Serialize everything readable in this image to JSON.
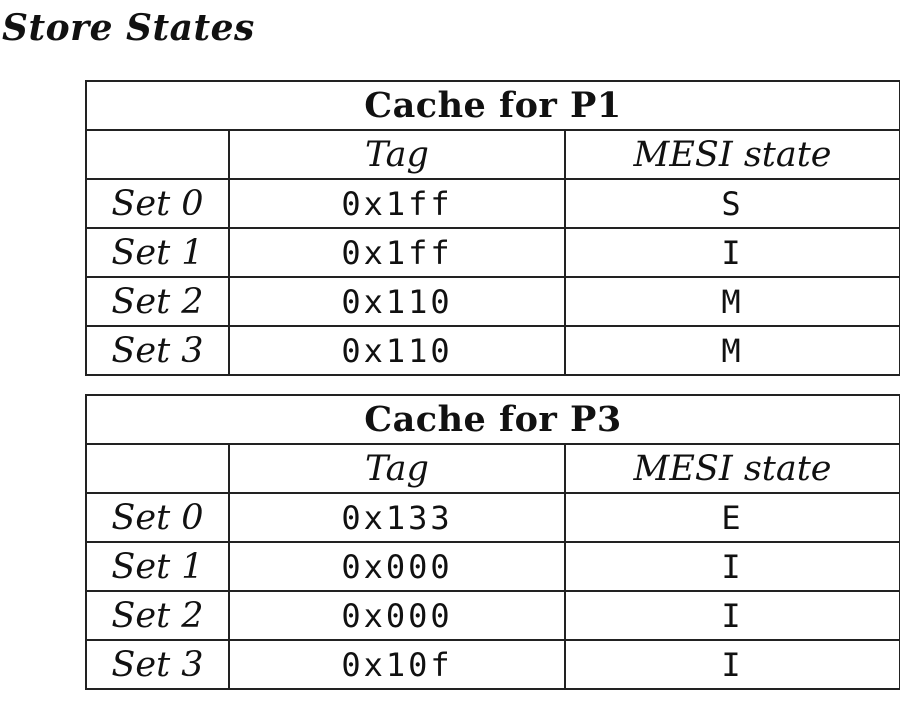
{
  "page": {
    "title": "Store States"
  },
  "caches": [
    {
      "title": "Cache for P1",
      "columns": [
        "",
        "Tag",
        "MESI state"
      ],
      "rows": [
        {
          "set": "Set 0",
          "tag": "0x1ff",
          "state": "S"
        },
        {
          "set": "Set 1",
          "tag": "0x1ff",
          "state": "I"
        },
        {
          "set": "Set 2",
          "tag": "0x110",
          "state": "M"
        },
        {
          "set": "Set 3",
          "tag": "0x110",
          "state": "M"
        }
      ]
    },
    {
      "title": "Cache for P3",
      "columns": [
        "",
        "Tag",
        "MESI state"
      ],
      "rows": [
        {
          "set": "Set 0",
          "tag": "0x133",
          "state": "E"
        },
        {
          "set": "Set 1",
          "tag": "0x000",
          "state": "I"
        },
        {
          "set": "Set 2",
          "tag": "0x000",
          "state": "I"
        },
        {
          "set": "Set 3",
          "tag": "0x10f",
          "state": "I"
        }
      ]
    }
  ]
}
